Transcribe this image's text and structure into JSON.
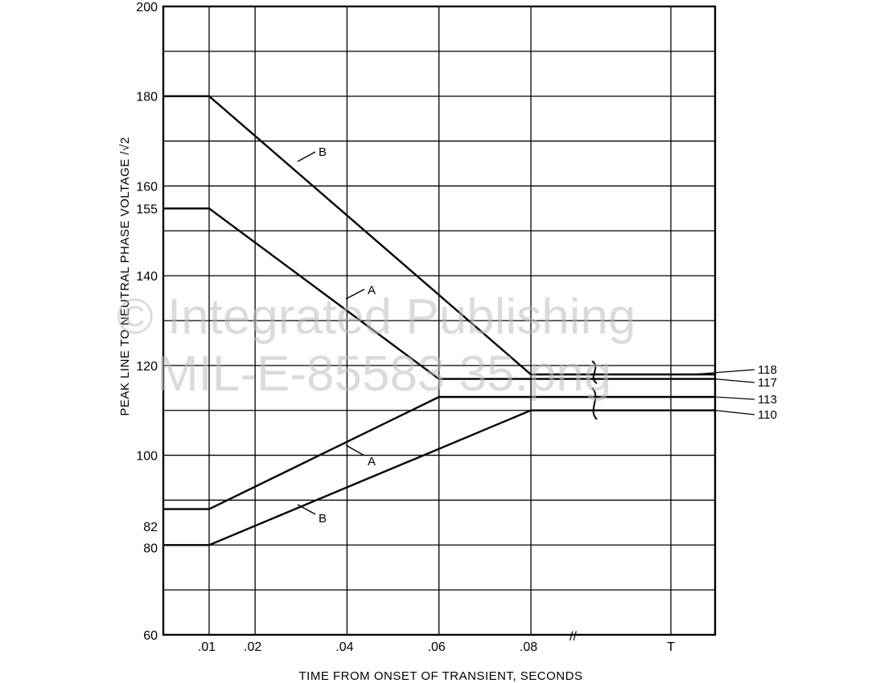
{
  "watermark": {
    "line1": "© Integrated Publishing",
    "line2": "MIL-E-85583 35.png"
  },
  "chart_data": {
    "type": "line",
    "xlabel": "TIME FROM ONSET OF TRANSIENT, SECONDS",
    "ylabel": "PEAK LINE TO NEUTRAL PHASE VOLTAGE /√2",
    "ylim": [
      60,
      200
    ],
    "x_ticks": [
      {
        "value": 0.01,
        "label": ".01"
      },
      {
        "value": 0.02,
        "label": ".02"
      },
      {
        "value": 0.04,
        "label": ".04"
      },
      {
        "value": 0.06,
        "label": ".06"
      },
      {
        "value": 0.08,
        "label": ".08"
      },
      {
        "value": "T",
        "label": "T"
      }
    ],
    "y_ticks": [
      {
        "value": 200,
        "label": "200"
      },
      {
        "value": 180,
        "label": "180"
      },
      {
        "value": 160,
        "label": "160"
      },
      {
        "value": 155,
        "label": "155"
      },
      {
        "value": 140,
        "label": "140"
      },
      {
        "value": 120,
        "label": "120"
      },
      {
        "value": 100,
        "label": "100"
      },
      {
        "value": 82,
        "label": "82"
      },
      {
        "value": 80,
        "label": "80"
      },
      {
        "value": 60,
        "label": "60"
      }
    ],
    "grid": true,
    "axis_break": "between .08 and T",
    "series": [
      {
        "name": "A",
        "part": "upper",
        "x": [
          0,
          0.01,
          0.06,
          "T"
        ],
        "y": [
          155,
          155,
          117,
          117
        ]
      },
      {
        "name": "B",
        "part": "upper",
        "x": [
          0,
          0.01,
          0.08,
          "T"
        ],
        "y": [
          180,
          180,
          118,
          118
        ]
      },
      {
        "name": "A",
        "part": "lower",
        "x": [
          0,
          0.01,
          0.06,
          "T"
        ],
        "y": [
          88,
          88,
          113,
          113
        ]
      },
      {
        "name": "B",
        "part": "lower",
        "x": [
          0,
          0.01,
          0.08,
          "T"
        ],
        "y": [
          80,
          80,
          110,
          110
        ]
      }
    ],
    "right_labels": [
      {
        "value": 118,
        "label": "118"
      },
      {
        "value": 117,
        "label": "117"
      },
      {
        "value": 113,
        "label": "113"
      },
      {
        "value": 110,
        "label": "110"
      }
    ]
  }
}
